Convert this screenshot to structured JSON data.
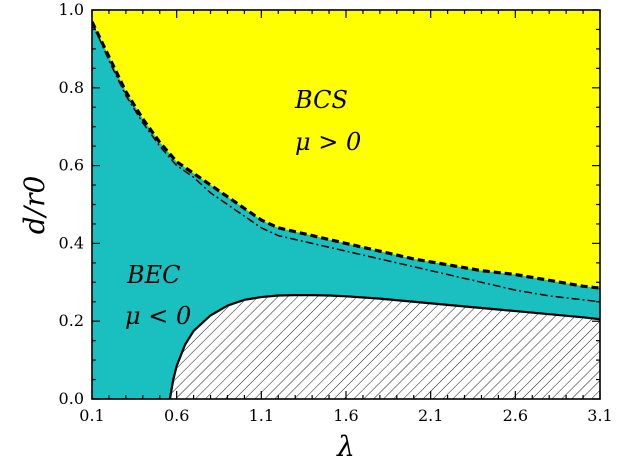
{
  "chart_data": {
    "type": "area",
    "xlabel": "λ",
    "ylabel": "d/r0",
    "xlim": [
      0.1,
      3.1
    ],
    "ylim": [
      0.0,
      1.0
    ],
    "x_ticks": [
      0.1,
      0.6,
      1.1,
      1.6,
      2.1,
      2.6,
      3.1
    ],
    "x_tick_labels": [
      "0.1",
      "0.6",
      "1.1",
      "1.6",
      "2.1",
      "2.6",
      "3.1"
    ],
    "y_ticks": [
      0.0,
      0.2,
      0.4,
      0.6,
      0.8,
      1.0
    ],
    "y_tick_labels": [
      "0.0",
      "0.2",
      "0.4",
      "0.6",
      "0.8",
      "1.0"
    ],
    "grid": false,
    "colors": {
      "bcs_region": "#ffff00",
      "bec_region": "#1abfbf",
      "hatched_region": "#ffffff",
      "lines": "#000000"
    },
    "regions": [
      {
        "name": "BCS",
        "condition": "μ > 0",
        "lines": [
          "BCS",
          "μ > 0"
        ]
      },
      {
        "name": "BEC",
        "condition": "μ < 0",
        "lines": [
          "BEC",
          "μ < 0"
        ]
      }
    ],
    "series": [
      {
        "style": "dashed",
        "x": [
          0.1,
          0.2,
          0.3,
          0.4,
          0.5,
          0.6,
          0.7,
          0.8,
          0.9,
          1.0,
          1.1,
          1.2,
          1.3,
          1.4,
          1.5,
          1.6,
          1.8,
          2.0,
          2.2,
          2.4,
          2.6,
          2.8,
          3.0,
          3.1
        ],
        "values": [
          0.97,
          0.88,
          0.79,
          0.72,
          0.66,
          0.61,
          0.58,
          0.55,
          0.52,
          0.49,
          0.46,
          0.44,
          0.43,
          0.42,
          0.41,
          0.4,
          0.38,
          0.36,
          0.345,
          0.33,
          0.32,
          0.305,
          0.29,
          0.285
        ]
      },
      {
        "style": "dash-dot",
        "x": [
          0.1,
          0.2,
          0.3,
          0.4,
          0.5,
          0.6,
          0.7,
          0.8,
          0.9,
          1.0,
          1.1,
          1.2,
          1.3,
          1.4,
          1.5,
          1.6,
          1.8,
          2.0,
          2.2,
          2.4,
          2.6,
          2.8,
          3.0,
          3.1
        ],
        "values": [
          0.97,
          0.87,
          0.78,
          0.71,
          0.65,
          0.6,
          0.57,
          0.53,
          0.5,
          0.47,
          0.44,
          0.42,
          0.41,
          0.4,
          0.39,
          0.38,
          0.36,
          0.34,
          0.32,
          0.3,
          0.28,
          0.265,
          0.255,
          0.25
        ]
      },
      {
        "style": "solid",
        "x": [
          0.56,
          0.58,
          0.6,
          0.65,
          0.7,
          0.8,
          0.9,
          1.0,
          1.1,
          1.2,
          1.3,
          1.4,
          1.5,
          1.6,
          1.8,
          2.0,
          2.2,
          2.4,
          2.6,
          2.8,
          3.0,
          3.1
        ],
        "values": [
          0.0,
          0.05,
          0.085,
          0.14,
          0.175,
          0.215,
          0.24,
          0.255,
          0.262,
          0.266,
          0.267,
          0.267,
          0.266,
          0.264,
          0.258,
          0.25,
          0.242,
          0.234,
          0.226,
          0.218,
          0.21,
          0.205
        ]
      }
    ]
  }
}
